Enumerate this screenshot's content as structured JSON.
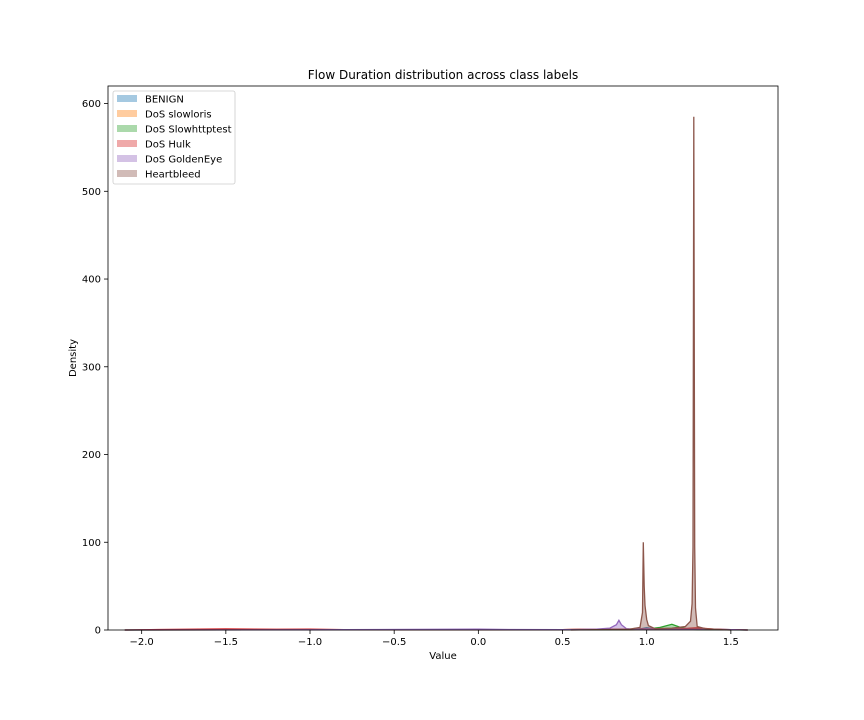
{
  "chart_data": {
    "type": "area",
    "title": "Flow Duration distribution across class labels",
    "xlabel": "Value",
    "ylabel": "Density",
    "xlim": [
      -2.2,
      1.78
    ],
    "ylim": [
      0,
      620
    ],
    "xticks": [
      -2.0,
      -1.5,
      -1.0,
      -0.5,
      0.0,
      0.5,
      1.0,
      1.5
    ],
    "xtick_labels": [
      "−2.0",
      "−1.5",
      "−1.0",
      "−0.5",
      "0.0",
      "0.5",
      "1.0",
      "1.5"
    ],
    "yticks": [
      0,
      100,
      200,
      300,
      400,
      500,
      600
    ],
    "ytick_labels": [
      "0",
      "100",
      "200",
      "300",
      "400",
      "500",
      "600"
    ],
    "legend_position": "upper-left",
    "grid": false,
    "series": [
      {
        "name": "BENIGN",
        "color": "#1f77b4",
        "points": [
          [
            -2.1,
            0
          ],
          [
            -1.6,
            0.3
          ],
          [
            -1.0,
            0.5
          ],
          [
            -0.5,
            0.2
          ],
          [
            0.0,
            0.4
          ],
          [
            0.5,
            0.2
          ],
          [
            0.7,
            0.6
          ],
          [
            0.9,
            0.8
          ],
          [
            0.97,
            1.5
          ],
          [
            1.0,
            2.5
          ],
          [
            1.05,
            1.2
          ],
          [
            1.15,
            1.0
          ],
          [
            1.25,
            1.5
          ],
          [
            1.28,
            2.0
          ],
          [
            1.35,
            1.0
          ],
          [
            1.5,
            0.3
          ],
          [
            1.6,
            0
          ]
        ]
      },
      {
        "name": "DoS slowloris",
        "color": "#ff7f0e",
        "points": [
          [
            -2.1,
            0
          ],
          [
            -1.5,
            0.2
          ],
          [
            -0.5,
            0.1
          ],
          [
            0.5,
            0.3
          ],
          [
            0.6,
            1.0
          ],
          [
            0.7,
            0.6
          ],
          [
            0.9,
            0.4
          ],
          [
            1.0,
            0.9
          ],
          [
            1.2,
            0.8
          ],
          [
            1.3,
            1.2
          ],
          [
            1.45,
            0.5
          ],
          [
            1.6,
            0
          ]
        ]
      },
      {
        "name": "DoS Slowhttptest",
        "color": "#2ca02c",
        "points": [
          [
            -2.1,
            0
          ],
          [
            -1.0,
            0.3
          ],
          [
            0.0,
            0.2
          ],
          [
            0.7,
            0.4
          ],
          [
            0.9,
            0.6
          ],
          [
            1.0,
            1.0
          ],
          [
            1.08,
            3.0
          ],
          [
            1.15,
            6.5
          ],
          [
            1.2,
            3.0
          ],
          [
            1.25,
            1.0
          ],
          [
            1.3,
            0.5
          ],
          [
            1.45,
            0.2
          ],
          [
            1.6,
            0
          ]
        ]
      },
      {
        "name": "DoS Hulk",
        "color": "#d62728",
        "points": [
          [
            -2.1,
            0
          ],
          [
            -1.9,
            0.6
          ],
          [
            -1.5,
            1.2
          ],
          [
            -1.2,
            0.8
          ],
          [
            -1.0,
            1.0
          ],
          [
            -0.8,
            0.5
          ],
          [
            -0.5,
            0.3
          ],
          [
            0.0,
            0.3
          ],
          [
            0.5,
            0.5
          ],
          [
            0.7,
            0.8
          ],
          [
            0.9,
            1.0
          ],
          [
            1.0,
            1.5
          ],
          [
            1.2,
            1.4
          ],
          [
            1.3,
            2.5
          ],
          [
            1.4,
            1.0
          ],
          [
            1.5,
            0.4
          ],
          [
            1.6,
            0
          ]
        ]
      },
      {
        "name": "DoS GoldenEye",
        "color": "#9467bd",
        "points": [
          [
            -2.1,
            0
          ],
          [
            -1.0,
            0.2
          ],
          [
            -0.2,
            0.8
          ],
          [
            0.0,
            0.9
          ],
          [
            0.2,
            0.6
          ],
          [
            0.5,
            0.4
          ],
          [
            0.7,
            1.0
          ],
          [
            0.78,
            2.0
          ],
          [
            0.82,
            6.0
          ],
          [
            0.835,
            11.0
          ],
          [
            0.85,
            6.0
          ],
          [
            0.88,
            1.5
          ],
          [
            0.92,
            1.0
          ],
          [
            0.97,
            1.0
          ],
          [
            1.0,
            1.5
          ],
          [
            1.1,
            0.8
          ],
          [
            1.3,
            0.8
          ],
          [
            1.5,
            0.3
          ],
          [
            1.6,
            0
          ]
        ]
      },
      {
        "name": "Heartbleed",
        "color": "#8c564b",
        "points": [
          [
            0.55,
            0
          ],
          [
            0.7,
            0.5
          ],
          [
            0.9,
            1.0
          ],
          [
            0.96,
            3.0
          ],
          [
            0.975,
            20.0
          ],
          [
            0.98,
            100.0
          ],
          [
            0.985,
            50.0
          ],
          [
            0.99,
            28.0
          ],
          [
            1.0,
            12.0
          ],
          [
            1.01,
            5.0
          ],
          [
            1.05,
            1.5
          ],
          [
            1.15,
            2.0
          ],
          [
            1.23,
            4.0
          ],
          [
            1.26,
            10.0
          ],
          [
            1.27,
            30.0
          ],
          [
            1.275,
            95.0
          ],
          [
            1.28,
            585.0
          ],
          [
            1.285,
            95.0
          ],
          [
            1.29,
            25.0
          ],
          [
            1.3,
            4.0
          ],
          [
            1.35,
            1.5
          ],
          [
            1.45,
            0.3
          ],
          [
            1.5,
            0
          ]
        ]
      }
    ]
  }
}
